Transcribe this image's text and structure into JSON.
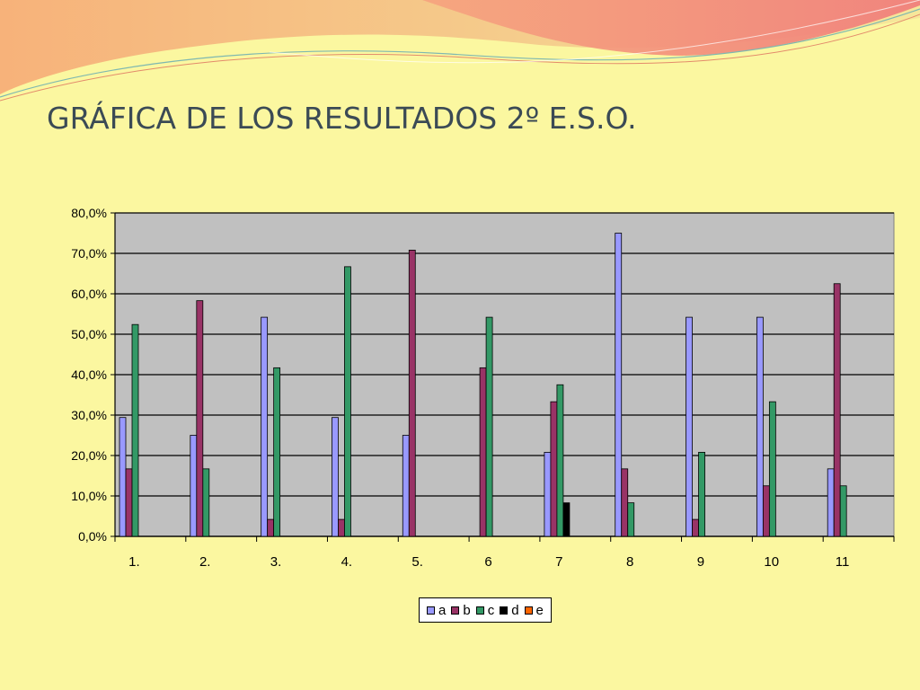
{
  "slide": {
    "title": "GRÁFICA DE LOS RESULTADOS 2º E.S.O."
  },
  "colors": {
    "background": "#fbf7a0",
    "plot_area": "#c0c0c0",
    "series_a": "#9999ff",
    "series_b": "#993366",
    "series_c": "#339966",
    "series_d": "#000000",
    "series_e": "#ff6600"
  },
  "chart_data": {
    "type": "bar",
    "title": "",
    "xlabel": "",
    "ylabel": "",
    "ylim": [
      0,
      80
    ],
    "y_tick_labels": [
      "0,0%",
      "10,0%",
      "20,0%",
      "30,0%",
      "40,0%",
      "50,0%",
      "60,0%",
      "70,0%",
      "80,0%"
    ],
    "categories": [
      "1.",
      "2.",
      "3.",
      "4.",
      "5.",
      "6",
      "7",
      "8",
      "9",
      "10",
      "11"
    ],
    "series": [
      {
        "name": "a",
        "values": [
          29.4,
          25.0,
          54.2,
          29.4,
          25.0,
          0,
          20.8,
          75.0,
          54.2,
          54.2,
          16.7
        ]
      },
      {
        "name": "b",
        "values": [
          16.7,
          58.3,
          4.2,
          4.2,
          70.8,
          41.7,
          33.3,
          16.7,
          4.2,
          12.5,
          62.5
        ]
      },
      {
        "name": "c",
        "values": [
          52.4,
          16.7,
          41.7,
          66.7,
          0,
          54.2,
          37.5,
          8.3,
          20.8,
          33.3,
          12.5
        ]
      },
      {
        "name": "d",
        "values": [
          0,
          0,
          0,
          0,
          0,
          0,
          8.3,
          0,
          0,
          0,
          0
        ]
      },
      {
        "name": "e",
        "values": [
          0,
          0,
          0,
          0,
          0,
          0,
          0,
          0,
          0,
          0,
          0
        ]
      }
    ],
    "grid": true,
    "legend_position": "bottom-center"
  }
}
